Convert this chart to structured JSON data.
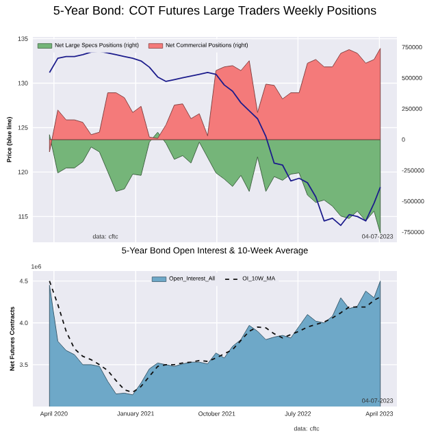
{
  "chart_data": [
    {
      "type": "area",
      "title": "5-Year Bond: COT Futures Large Traders Weekly Positions",
      "ylabel": "Price (blue line)",
      "x": [
        "2020-03-17",
        "2020-04-14",
        "2020-05-12",
        "2020-06-09",
        "2020-07-07",
        "2020-08-04",
        "2020-09-01",
        "2020-09-29",
        "2020-10-27",
        "2020-11-24",
        "2020-12-22",
        "2021-01-19",
        "2021-02-16",
        "2021-03-16",
        "2021-04-13",
        "2021-05-11",
        "2021-06-08",
        "2021-07-06",
        "2021-08-03",
        "2021-08-31",
        "2021-09-28",
        "2021-10-26",
        "2021-11-23",
        "2021-12-21",
        "2022-01-18",
        "2022-02-15",
        "2022-03-15",
        "2022-04-12",
        "2022-05-10",
        "2022-06-07",
        "2022-07-05",
        "2022-08-02",
        "2022-08-30",
        "2022-09-27",
        "2022-10-25",
        "2022-11-22",
        "2022-12-20",
        "2023-01-17",
        "2023-02-14",
        "2023-03-14",
        "2023-04-04"
      ],
      "xlim": [
        "2020-01-21",
        "2023-05-30"
      ],
      "xticks": [
        {
          "value": "2020-04-01",
          "label": null
        },
        {
          "value": "2021-01-01",
          "label": null
        },
        {
          "value": "2021-10-01",
          "label": null
        },
        {
          "value": "2022-07-01",
          "label": null
        },
        {
          "value": "2023-04-01",
          "label": null
        }
      ],
      "ylim": [
        112.1,
        135.2
      ],
      "yticks": [
        115,
        120,
        125,
        130,
        135
      ],
      "y2lim": [
        -833000,
        833000
      ],
      "y2ticks": [
        -750000,
        -500000,
        -250000,
        0,
        250000,
        500000,
        750000
      ],
      "tick_labels": "y",
      "grid": true,
      "legend": "top left",
      "annotations": [
        "data: cftc",
        "04-07-2023"
      ],
      "series": [
        {
          "name": "Net Large Specs Positions (right)",
          "axis": "y2",
          "color": "#75b579",
          "values": [
            40000,
            -270000,
            -230000,
            -230000,
            -180000,
            -60000,
            -100000,
            -260000,
            -420000,
            -400000,
            -280000,
            -290000,
            -20000,
            60000,
            -30000,
            -160000,
            -130000,
            -190000,
            -20000,
            null,
            -270000,
            -320000,
            -380000,
            -290000,
            -420000,
            -140000,
            -420000,
            -300000,
            -330000,
            -280000,
            -270000,
            -450000,
            -510000,
            -490000,
            -540000,
            -620000,
            -640000,
            -580000,
            -660000,
            -580000,
            -760000
          ]
        },
        {
          "name": "Net Commercial Positions (right)",
          "axis": "y2",
          "color": "#f47a7a",
          "values": [
            -100000,
            240000,
            160000,
            160000,
            140000,
            40000,
            60000,
            380000,
            380000,
            340000,
            220000,
            270000,
            20000,
            10000,
            120000,
            280000,
            290000,
            170000,
            210000,
            30000,
            560000,
            590000,
            600000,
            560000,
            640000,
            220000,
            450000,
            440000,
            330000,
            380000,
            380000,
            620000,
            650000,
            590000,
            590000,
            700000,
            730000,
            700000,
            620000,
            650000,
            740000
          ]
        },
        {
          "type": "line",
          "axis": "y",
          "color": "#1c1c8c",
          "values": [
            131.2,
            132.8,
            133.0,
            133.0,
            133.2,
            133.5,
            133.6,
            133.4,
            133.2,
            133.0,
            132.8,
            132.5,
            131.8,
            130.7,
            130.2,
            130.4,
            130.6,
            130.8,
            131.0,
            131.2,
            131.0,
            129.8,
            129.1,
            127.8,
            126.9,
            126.0,
            124.0,
            121.0,
            120.8,
            119.0,
            119.3,
            118.8,
            117.2,
            114.5,
            114.8,
            114.0,
            115.2,
            115.0,
            114.5,
            116.5,
            118.3
          ]
        }
      ]
    },
    {
      "type": "area",
      "title": "5-Year Bond Open Interest & 10-Week Average",
      "ylabel": "Net Futures Contracts",
      "x": [
        "2020-03-17",
        "2020-04-14",
        "2020-05-12",
        "2020-06-09",
        "2020-07-07",
        "2020-08-04",
        "2020-09-01",
        "2020-09-29",
        "2020-10-27",
        "2020-11-24",
        "2020-12-22",
        "2021-01-19",
        "2021-02-16",
        "2021-03-16",
        "2021-04-13",
        "2021-05-11",
        "2021-06-08",
        "2021-07-06",
        "2021-08-03",
        "2021-08-31",
        "2021-09-28",
        "2021-10-26",
        "2021-11-23",
        "2021-12-21",
        "2022-01-18",
        "2022-02-15",
        "2022-03-15",
        "2022-04-12",
        "2022-05-10",
        "2022-06-07",
        "2022-07-05",
        "2022-08-02",
        "2022-08-30",
        "2022-09-27",
        "2022-10-25",
        "2022-11-22",
        "2022-12-20",
        "2023-01-17",
        "2023-02-14",
        "2023-03-14",
        "2023-04-04"
      ],
      "xlim": [
        "2020-01-21",
        "2023-05-30"
      ],
      "xticks": [
        {
          "value": "2020-04-01",
          "label": "April 2020"
        },
        {
          "value": "2021-01-01",
          "label": "January 2021"
        },
        {
          "value": "2021-10-01",
          "label": "October 2021"
        },
        {
          "value": "2022-07-01",
          "label": "July 2022"
        },
        {
          "value": "2023-04-01",
          "label": "April 2023"
        }
      ],
      "ylim": [
        3.0,
        4.62
      ],
      "yticks": [
        3.5,
        {
          "value": 4,
          "label": "4.0"
        },
        4.5
      ],
      "grid": true,
      "legend": "top",
      "annotations": [
        "1e6",
        "04-07-2023",
        "data: cftc"
      ],
      "series": [
        {
          "name": "Open_Interest_All",
          "axis": "y",
          "color": "#6ea8c8",
          "values": [
            4.45,
            3.78,
            3.67,
            3.62,
            3.5,
            3.5,
            3.48,
            3.3,
            3.15,
            3.16,
            3.14,
            3.28,
            3.45,
            3.52,
            3.5,
            3.48,
            3.51,
            3.53,
            3.53,
            3.51,
            3.64,
            3.58,
            3.72,
            3.8,
            3.97,
            3.9,
            3.8,
            3.83,
            3.85,
            3.82,
            3.96,
            4.1,
            4.02,
            4.0,
            4.08,
            4.3,
            4.17,
            4.2,
            4.38,
            4.3,
            4.5
          ]
        },
        {
          "name": "OI_10W_MA",
          "type": "line",
          "axis": "y",
          "line_style": "dashed",
          "color": "#111111",
          "values": [
            4.5,
            4.22,
            3.9,
            3.69,
            3.6,
            3.56,
            3.5,
            3.43,
            3.31,
            3.2,
            3.17,
            3.24,
            3.36,
            3.48,
            3.5,
            3.5,
            3.52,
            3.53,
            3.55,
            3.54,
            3.58,
            3.63,
            3.68,
            3.79,
            3.9,
            3.95,
            3.94,
            3.87,
            3.82,
            3.86,
            3.9,
            3.95,
            3.98,
            4.01,
            4.06,
            4.12,
            4.19,
            4.19,
            4.19,
            4.27,
            4.31
          ]
        }
      ]
    }
  ]
}
